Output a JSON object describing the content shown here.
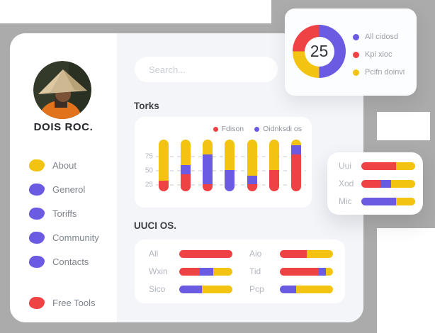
{
  "colors": {
    "red": "#ee4245",
    "yellow": "#f2c411",
    "purple": "#6a5be2",
    "gray_bg": "#ababab",
    "content_bg": "#f4f5f9"
  },
  "sidebar": {
    "profile_name": "DOIS ROC.",
    "items": [
      {
        "label": "About",
        "color": "yellow"
      },
      {
        "label": "Generol",
        "color": "purple"
      },
      {
        "label": "Toriffs",
        "color": "purple"
      },
      {
        "label": "Community",
        "color": "purple"
      },
      {
        "label": "Contacts",
        "color": "purple"
      }
    ],
    "footer_item": {
      "label": "Free Tools",
      "color": "red"
    }
  },
  "search": {
    "placeholder": "Search..."
  },
  "chart_data": [
    {
      "name": "summary-donut",
      "type": "pie",
      "center_value": "25",
      "segments": [
        {
          "label": "All cidosd",
          "color": "purple",
          "value": 50
        },
        {
          "label": "Pcifn doinvi",
          "color": "yellow",
          "value": 25
        },
        {
          "label": "Kpi xioc",
          "color": "red",
          "value": 25
        }
      ],
      "legend": [
        {
          "label": "All cidosd",
          "color": "purple"
        },
        {
          "label": "Kpi xioc",
          "color": "red"
        },
        {
          "label": "Pcifn doinvi",
          "color": "yellow"
        }
      ]
    },
    {
      "name": "torks",
      "title": "Torks",
      "type": "bar",
      "stacked": true,
      "legend": [
        {
          "label": "Fdison",
          "color": "red"
        },
        {
          "label": "Oidnksdi os",
          "color": "purple"
        }
      ],
      "y_ticks": [
        75,
        50,
        25
      ],
      "y_max": 100,
      "bars": [
        {
          "segments": [
            {
              "color": "red",
              "pct": 21
            },
            {
              "color": "yellow",
              "pct": 79
            }
          ]
        },
        {
          "segments": [
            {
              "color": "red",
              "pct": 33
            },
            {
              "color": "purple",
              "pct": 18
            },
            {
              "color": "yellow",
              "pct": 49
            }
          ]
        },
        {
          "segments": [
            {
              "color": "red",
              "pct": 14
            },
            {
              "color": "purple",
              "pct": 57
            },
            {
              "color": "yellow",
              "pct": 29
            }
          ]
        },
        {
          "segments": [
            {
              "color": "purple",
              "pct": 41
            },
            {
              "color": "yellow",
              "pct": 59
            }
          ]
        },
        {
          "segments": [
            {
              "color": "red",
              "pct": 14
            },
            {
              "color": "purple",
              "pct": 16
            },
            {
              "color": "yellow",
              "pct": 70
            }
          ]
        },
        {
          "segments": [
            {
              "color": "red",
              "pct": 41
            },
            {
              "color": "yellow",
              "pct": 59
            }
          ]
        },
        {
          "segments": [
            {
              "color": "red",
              "pct": 71
            },
            {
              "color": "purple",
              "pct": 18
            },
            {
              "color": "yellow",
              "pct": 11
            }
          ]
        }
      ]
    },
    {
      "name": "uuci-os",
      "title": "UUCI OS.",
      "type": "bar",
      "orientation": "horizontal",
      "columns": [
        [
          {
            "label": "All",
            "segments": [
              {
                "color": "red",
                "pct": 100
              }
            ]
          },
          {
            "label": "Wxin",
            "segments": [
              {
                "color": "red",
                "pct": 38
              },
              {
                "color": "purple",
                "pct": 26
              },
              {
                "color": "yellow",
                "pct": 36
              }
            ]
          },
          {
            "label": "Sico",
            "segments": [
              {
                "color": "purple",
                "pct": 42
              },
              {
                "color": "yellow",
                "pct": 58
              }
            ]
          }
        ],
        [
          {
            "label": "Aio",
            "segments": [
              {
                "color": "red",
                "pct": 50
              },
              {
                "color": "yellow",
                "pct": 50
              }
            ]
          },
          {
            "label": "Tid",
            "segments": [
              {
                "color": "red",
                "pct": 73
              },
              {
                "color": "purple",
                "pct": 14
              },
              {
                "color": "yellow",
                "pct": 13
              }
            ]
          },
          {
            "label": "Pcp",
            "segments": [
              {
                "color": "purple",
                "pct": 30
              },
              {
                "color": "yellow",
                "pct": 70
              }
            ]
          }
        ]
      ]
    },
    {
      "name": "side-panel",
      "type": "bar",
      "orientation": "horizontal",
      "rows": [
        {
          "label": "Uui",
          "segments": [
            {
              "color": "red",
              "pct": 65
            },
            {
              "color": "yellow",
              "pct": 35
            }
          ]
        },
        {
          "label": "Xod",
          "segments": [
            {
              "color": "red",
              "pct": 35
            },
            {
              "color": "purple",
              "pct": 20
            },
            {
              "color": "yellow",
              "pct": 45
            }
          ]
        },
        {
          "label": "Mic",
          "segments": [
            {
              "color": "purple",
              "pct": 65
            },
            {
              "color": "yellow",
              "pct": 35
            }
          ]
        }
      ]
    }
  ]
}
